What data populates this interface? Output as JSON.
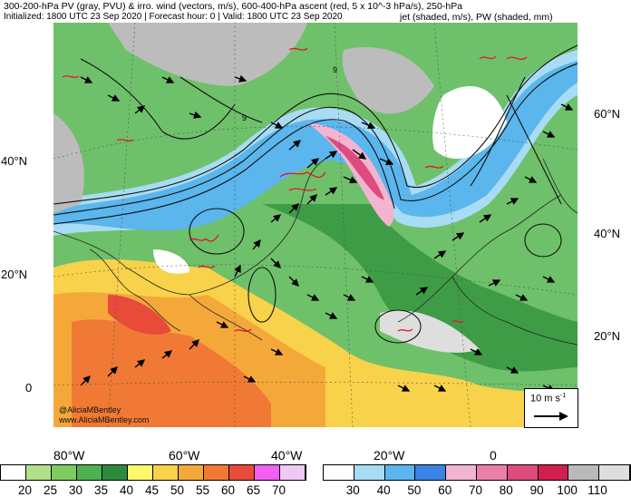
{
  "title_line1": "300-200-hPa PV (gray, PVU) & irro. wind (vectors, m/s), 600-400-hPa ascent (red, 5 x 10^-3 hPa/s), 250-hPa",
  "title_line2_left": "Initialized: 1800 UTC 23 Sep 2020 | Forecast hour: 0 | Valid: 1800 UTC 23 Sep 2020",
  "title_line2_right": "jet (shaded, m/s), PW (shaded, mm)",
  "watermark_line1": "@AliciaMBentley",
  "watermark_line2": "www.AliciaMBentley.com",
  "scale_label": "10 m s",
  "scale_exponent": "-1",
  "lat_labels_left": [
    "40°N",
    "20°N",
    "0"
  ],
  "lat_labels_right": [
    "60°N",
    "40°N",
    "20°N"
  ],
  "lon_labels": [
    "80°W",
    "60°W",
    "40°W",
    "20°W",
    "0"
  ],
  "map_contour_labels": [
    "9",
    "9"
  ],
  "pw_colorbar": {
    "labels": [
      "20",
      "25",
      "30",
      "35",
      "40",
      "45",
      "50",
      "55",
      "60",
      "65",
      "70"
    ],
    "colors": [
      "#ffffff",
      "#b2df8a",
      "#7ccd5e",
      "#4db24d",
      "#2e8b3e",
      "#fbf96b",
      "#f8d24a",
      "#f5a83a",
      "#f07a35",
      "#e84b3a",
      "#f15ff3",
      "#f0c8f5"
    ]
  },
  "jet_colorbar": {
    "labels": [
      "30",
      "40",
      "50",
      "60",
      "70",
      "80",
      "90",
      "100",
      "110"
    ],
    "colors": [
      "#ffffff",
      "#a8dcf4",
      "#5ab6ec",
      "#3b83e4",
      "#f3b4d2",
      "#eb7fa8",
      "#de4b7e",
      "#d11f4f",
      "#b9b9b9",
      "#dedede"
    ]
  },
  "colors": {
    "ocean_light": "#e8f4fa",
    "land_gray": "#bcbcbc",
    "ascent_red": "#e0192b"
  }
}
